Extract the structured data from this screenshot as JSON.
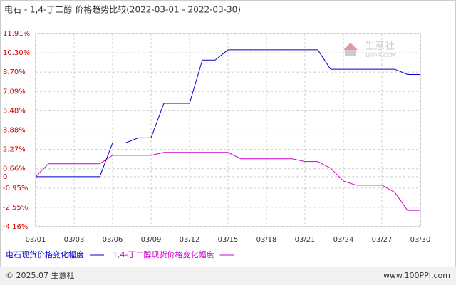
{
  "chart_data": {
    "type": "line",
    "title": "电石 - 1,4-丁二醇 价格趋势比较(2022-03-01 - 2022-03-30)",
    "categories": [
      "03/01",
      null,
      null,
      "03/03",
      null,
      null,
      "03/06",
      null,
      null,
      "03/09",
      null,
      null,
      "03/12",
      null,
      null,
      "03/15",
      null,
      null,
      "03/18",
      null,
      null,
      "03/21",
      null,
      null,
      "03/24",
      null,
      null,
      "03/27",
      null,
      null,
      "03/30"
    ],
    "series": [
      {
        "name": "电石现货价格变化幅度",
        "color": "#0000cc",
        "values": [
          0,
          0,
          0,
          0,
          0,
          0,
          2.81,
          2.81,
          3.23,
          3.23,
          6.1,
          6.1,
          6.1,
          9.7,
          9.7,
          10.55,
          10.55,
          10.55,
          10.55,
          10.55,
          10.55,
          10.55,
          10.55,
          8.94,
          8.94,
          8.94,
          8.94,
          8.94,
          8.94,
          8.5,
          8.5
        ]
      },
      {
        "name": "1,4-丁二醇现货价格变化幅度",
        "color": "#cc00cc",
        "values": [
          0,
          1.07,
          1.07,
          1.07,
          1.07,
          1.07,
          1.78,
          1.78,
          1.78,
          1.78,
          2.02,
          2.02,
          2.02,
          2.02,
          2.02,
          2.02,
          1.49,
          1.49,
          1.49,
          1.49,
          1.49,
          1.26,
          1.26,
          0.7,
          -0.36,
          -0.71,
          -0.71,
          -0.71,
          -1.3,
          -2.8,
          -2.8
        ]
      }
    ],
    "ylim": [
      -4.16,
      11.91
    ],
    "yticks": [
      {
        "value": 11.91,
        "label": "11.91%"
      },
      {
        "value": 10.3,
        "label": "10.30%"
      },
      {
        "value": 8.7,
        "label": "8.70%"
      },
      {
        "value": 7.09,
        "label": "7.09%"
      },
      {
        "value": 5.48,
        "label": "5.48%"
      },
      {
        "value": 3.88,
        "label": "3.88%"
      },
      {
        "value": 2.27,
        "label": "2.27%"
      },
      {
        "value": 0.66,
        "label": "0.66%"
      },
      0,
      {
        "value": -0.95,
        "label": "-0.95%"
      },
      {
        "value": -2.55,
        "label": "-2.55%"
      },
      {
        "value": -4.16,
        "label": "-4.16%"
      }
    ],
    "grid": true,
    "watermark": {
      "name": "生意社",
      "site": "100PPI.COM"
    },
    "footer": {
      "copyright": "© 2025.07 生意社",
      "url": "www.100PPI.com"
    }
  }
}
